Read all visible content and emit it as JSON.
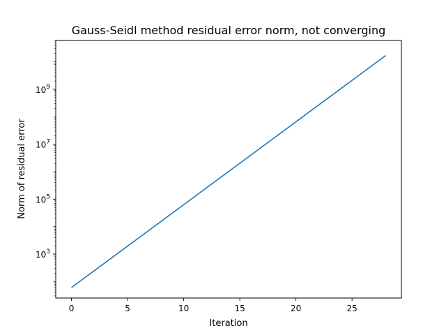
{
  "chart_data": {
    "type": "line",
    "title": "Gauss-Seidl method residual error norm, not converging",
    "xlabel": "Iteration",
    "ylabel": "Norm of residual error",
    "x_scale": "linear",
    "y_scale": "log",
    "xlim": [
      -1.4,
      29.4
    ],
    "ylim": [
      25,
      60000000000
    ],
    "x_ticks": [
      0,
      5,
      10,
      15,
      20,
      25
    ],
    "y_ticks": [
      {
        "base": "10",
        "exp": "3",
        "value": 1000
      },
      {
        "base": "10",
        "exp": "5",
        "value": 100000
      },
      {
        "base": "10",
        "exp": "7",
        "value": 10000000
      },
      {
        "base": "10",
        "exp": "9",
        "value": 1000000000
      }
    ],
    "grid": false,
    "legend": "none",
    "series": [
      {
        "color": "#1f77b4",
        "x": [
          0,
          28
        ],
        "y": [
          60,
          17000000000
        ]
      }
    ]
  }
}
